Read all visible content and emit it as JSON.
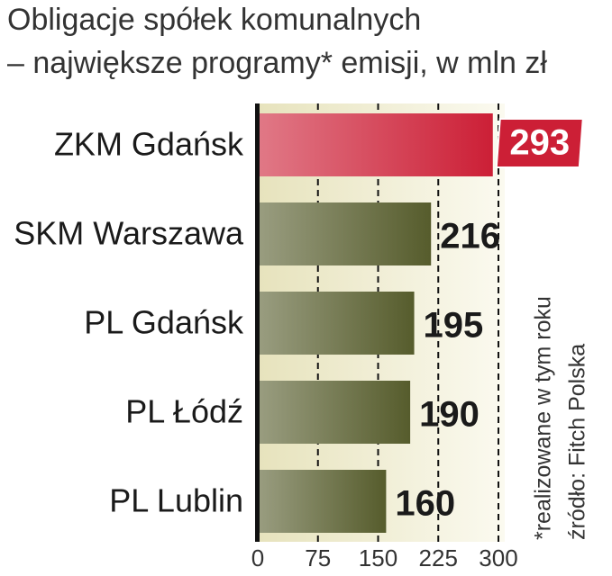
{
  "chart_data": {
    "type": "barh",
    "title": "Obligacje spółek komunalnych",
    "subtitle": "– największe programy* emisji, w mln zł",
    "categories": [
      "ZKM  Gdańsk",
      "SKM Warszawa",
      "PL Gdańsk",
      "PL Łódź",
      "PL Lublin"
    ],
    "values": [
      293,
      216,
      195,
      190,
      160
    ],
    "colors": [
      "#cc1f36",
      "#565c2c",
      "#565c2c",
      "#565c2c",
      "#565c2c"
    ],
    "xlim": [
      0,
      300
    ],
    "xticks": [
      0,
      75,
      150,
      225,
      300
    ],
    "grid": true,
    "notes": [
      "*realizowane w tym roku",
      "źródło: Fitch Polska"
    ]
  }
}
